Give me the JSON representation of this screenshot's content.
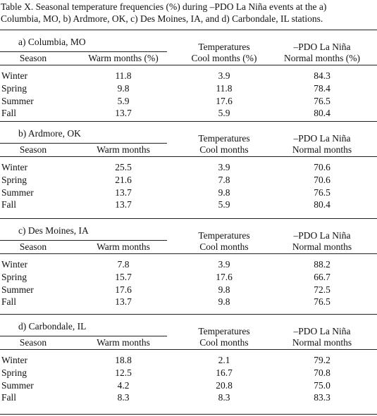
{
  "caption_lines": [
    "Table X. Seasonal temperature frequencies (%) during –PDO La Niña events at the a)",
    "Columbia, MO, b) Ardmore, OK, c) Des Moines, IA, and d) Carbondale, IL  stations."
  ],
  "panels": [
    {
      "title": "a) Columbia, MO",
      "group_headers": [
        "Temperatures",
        "–PDO La Niña"
      ],
      "columns": [
        "Season",
        "Warm months (%)",
        "Cool months (%)",
        "Normal months (%)"
      ],
      "rows": [
        [
          "Winter",
          "11.8",
          "3.9",
          "84.3"
        ],
        [
          "Spring",
          "9.8",
          "11.8",
          "78.4"
        ],
        [
          "Summer",
          "5.9",
          "17.6",
          "76.5"
        ],
        [
          "Fall",
          "13.7",
          "5.9",
          "80.4"
        ]
      ]
    },
    {
      "title": "b) Ardmore, OK",
      "group_headers": [
        "Temperatures",
        "–PDO La Niña"
      ],
      "columns": [
        "Season",
        "Warm months",
        "Cool months",
        "Normal months"
      ],
      "rows": [
        [
          "Winter",
          "25.5",
          "3.9",
          "70.6"
        ],
        [
          "Spring",
          "21.6",
          "7.8",
          "70.6"
        ],
        [
          "Summer",
          "13.7",
          "9.8",
          "76.5"
        ],
        [
          "Fall",
          "13.7",
          "5.9",
          "80.4"
        ]
      ]
    },
    {
      "title": "c) Des Moines, IA",
      "group_headers": [
        "Temperatures",
        "–PDO La Niña"
      ],
      "columns": [
        "Season",
        "Warm months",
        "Cool months",
        "Normal months"
      ],
      "rows": [
        [
          "Winter",
          "7.8",
          "3.9",
          "88.2"
        ],
        [
          "Spring",
          "15.7",
          "17.6",
          "66.7"
        ],
        [
          "Summer",
          "17.6",
          "9.8",
          "72.5"
        ],
        [
          "Fall",
          "13.7",
          "9.8",
          "76.5"
        ]
      ]
    },
    {
      "title": "d) Carbondale, IL",
      "group_headers": [
        "Temperatures",
        "–PDO La Niña"
      ],
      "columns": [
        "Season",
        "Warm months",
        "Cool months",
        "Normal months"
      ],
      "rows": [
        [
          "Winter",
          "18.8",
          "2.1",
          "79.2"
        ],
        [
          "Spring",
          "12.5",
          "16.7",
          "70.8"
        ],
        [
          "Summer",
          "4.2",
          "20.8",
          "75.0"
        ],
        [
          "Fall",
          "8.3",
          "8.3",
          "83.3"
        ]
      ]
    }
  ]
}
